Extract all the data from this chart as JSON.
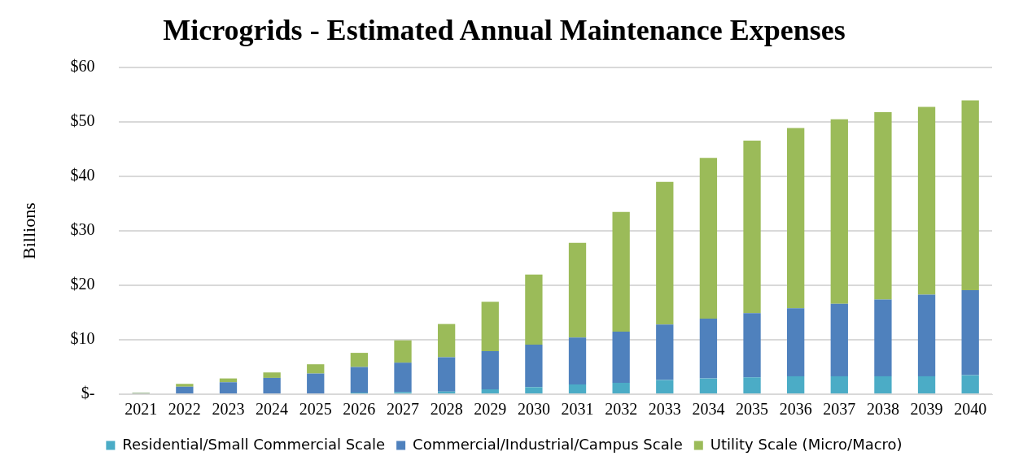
{
  "chart_data": {
    "type": "bar",
    "stacked": true,
    "title": "Microgrids - Estimated Annual Maintenance Expenses",
    "ylabel": "Billions",
    "categories": [
      "2021",
      "2022",
      "2023",
      "2024",
      "2025",
      "2026",
      "2027",
      "2028",
      "2029",
      "2030",
      "2031",
      "2032",
      "2033",
      "2034",
      "2035",
      "2036",
      "2037",
      "2038",
      "2039",
      "2040"
    ],
    "series": [
      {
        "name": "Residential/Small Commercial Scale",
        "color": "#4bacc6",
        "values": [
          null,
          null,
          null,
          null,
          null,
          0.3,
          0.4,
          0.5,
          0.9,
          1.3,
          1.8,
          2.1,
          2.6,
          2.9,
          3.1,
          3.3,
          3.3,
          3.3,
          3.3,
          3.5
        ]
      },
      {
        "name": "Commercial/Industrial/Campus Scale",
        "color": "#4f81bd",
        "values": [
          0.2,
          1.4,
          2.2,
          3.0,
          3.8,
          4.7,
          5.4,
          6.3,
          7.0,
          7.8,
          8.6,
          9.4,
          10.2,
          11.0,
          11.8,
          12.5,
          13.3,
          14.1,
          15.0,
          15.6
        ]
      },
      {
        "name": "Utility Scale (Micro/Macro)",
        "color": "#9bbb59",
        "values": [
          0.1,
          0.5,
          0.7,
          1.0,
          1.7,
          2.6,
          4.1,
          6.1,
          9.1,
          12.9,
          17.4,
          22.0,
          26.2,
          29.5,
          31.7,
          33.1,
          33.9,
          34.4,
          34.5,
          34.9
        ]
      }
    ],
    "ylim": [
      0,
      60
    ],
    "yticks": [
      {
        "value": 0,
        "label": "$-"
      },
      {
        "value": 10,
        "label": "$10"
      },
      {
        "value": 20,
        "label": "$20"
      },
      {
        "value": 30,
        "label": "$30"
      },
      {
        "value": 40,
        "label": "$40"
      },
      {
        "value": 50,
        "label": "$50"
      },
      {
        "value": 60,
        "label": "$60"
      }
    ],
    "grid": "y",
    "legend": "bottom"
  }
}
